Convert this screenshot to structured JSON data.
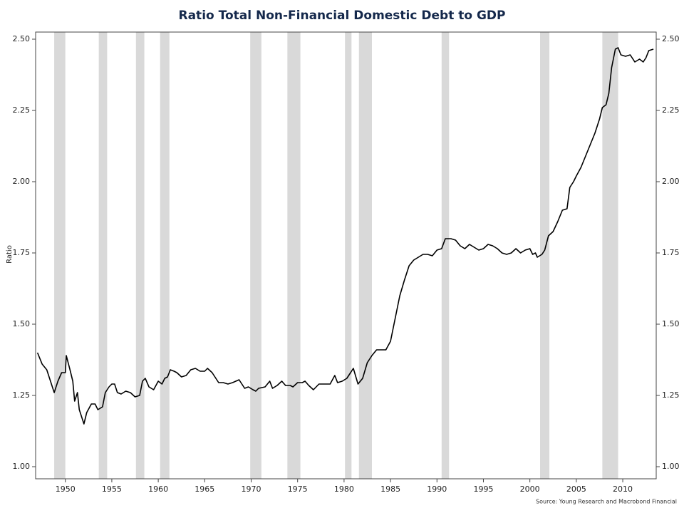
{
  "chart_data": {
    "type": "line",
    "title": "Ratio Total Non-Financial Domestic Debt to GDP",
    "y_label": "Ratio",
    "source": "Source: Young Research and Macrobond Financial",
    "xlim": [
      1946.8,
      2013.6
    ],
    "ylim": [
      0.9575,
      2.525
    ],
    "xticks": [
      1950,
      1955,
      1960,
      1965,
      1970,
      1975,
      1980,
      1985,
      1990,
      1995,
      2000,
      2005,
      2010
    ],
    "yticks": [
      {
        "value": 1.0,
        "label": "1.00"
      },
      1.25,
      {
        "value": 1.5,
        "label": "1.50"
      },
      1.75,
      {
        "value": 2.0,
        "label": "2.00"
      },
      2.25,
      {
        "value": 2.5,
        "label": "2.50"
      }
    ],
    "shading_color": "#d9d9d9",
    "recessions": [
      [
        1948.8,
        1950.0
      ],
      [
        1953.6,
        1954.5
      ],
      [
        1957.6,
        1958.5
      ],
      [
        1960.2,
        1961.2
      ],
      [
        1969.9,
        1971.1
      ],
      [
        1973.9,
        1975.3
      ],
      [
        1980.1,
        1980.8
      ],
      [
        1981.6,
        1983.0
      ],
      [
        1990.5,
        1991.3
      ],
      [
        2001.1,
        2002.1
      ],
      [
        2007.8,
        2009.5
      ]
    ],
    "series": [
      {
        "name": "Ratio",
        "color": "#000000",
        "x": [
          1947.0,
          1947.5,
          1948.0,
          1948.5,
          1948.8,
          1949.2,
          1949.6,
          1950.0,
          1950.1,
          1950.5,
          1950.8,
          1951.0,
          1951.3,
          1951.5,
          1952.0,
          1952.3,
          1952.8,
          1953.2,
          1953.5,
          1954.0,
          1954.3,
          1954.7,
          1955.0,
          1955.3,
          1955.6,
          1956.0,
          1956.5,
          1957.0,
          1957.5,
          1958.0,
          1958.3,
          1958.6,
          1959.0,
          1959.5,
          1960.0,
          1960.4,
          1960.7,
          1961.0,
          1961.3,
          1961.7,
          1962.0,
          1962.5,
          1963.0,
          1963.5,
          1964.0,
          1964.5,
          1965.0,
          1965.3,
          1965.8,
          1966.5,
          1967.0,
          1967.5,
          1968.0,
          1968.7,
          1969.3,
          1969.7,
          1970.2,
          1970.5,
          1970.8,
          1971.5,
          1972.0,
          1972.3,
          1972.8,
          1973.3,
          1973.7,
          1974.2,
          1974.5,
          1975.0,
          1975.5,
          1975.8,
          1976.2,
          1976.7,
          1977.3,
          1978.0,
          1978.5,
          1979.0,
          1979.3,
          1979.8,
          1980.3,
          1980.6,
          1981.0,
          1981.5,
          1982.0,
          1982.5,
          1983.0,
          1983.5,
          1984.0,
          1984.5,
          1985.0,
          1985.5,
          1986.0,
          1986.5,
          1987.0,
          1987.5,
          1988.0,
          1988.5,
          1989.0,
          1989.5,
          1990.0,
          1990.5,
          1990.9,
          1991.5,
          1992.0,
          1992.5,
          1993.0,
          1993.5,
          1994.0,
          1994.5,
          1995.0,
          1995.5,
          1996.0,
          1996.5,
          1997.0,
          1997.5,
          1998.0,
          1998.5,
          1999.0,
          1999.5,
          2000.0,
          2000.3,
          2000.6,
          2000.8,
          2001.3,
          2001.6,
          2002.0,
          2002.5,
          2003.0,
          2003.5,
          2004.0,
          2004.3,
          2004.7,
          2005.0,
          2005.5,
          2006.0,
          2006.5,
          2007.0,
          2007.5,
          2007.8,
          2008.2,
          2008.5,
          2008.8,
          2009.2,
          2009.5,
          2009.8,
          2010.3,
          2010.8,
          2011.0,
          2011.3,
          2011.8,
          2012.2,
          2012.5,
          2012.8,
          2013.3
        ],
        "values": [
          1.4,
          1.36,
          1.34,
          1.29,
          1.26,
          1.3,
          1.33,
          1.33,
          1.39,
          1.34,
          1.3,
          1.23,
          1.26,
          1.2,
          1.15,
          1.19,
          1.22,
          1.22,
          1.2,
          1.21,
          1.26,
          1.28,
          1.29,
          1.29,
          1.26,
          1.255,
          1.265,
          1.26,
          1.245,
          1.25,
          1.3,
          1.31,
          1.28,
          1.27,
          1.3,
          1.29,
          1.31,
          1.315,
          1.34,
          1.335,
          1.33,
          1.315,
          1.32,
          1.34,
          1.345,
          1.335,
          1.335,
          1.345,
          1.33,
          1.295,
          1.295,
          1.29,
          1.295,
          1.305,
          1.275,
          1.28,
          1.27,
          1.265,
          1.275,
          1.28,
          1.3,
          1.275,
          1.285,
          1.3,
          1.285,
          1.285,
          1.28,
          1.295,
          1.295,
          1.3,
          1.285,
          1.27,
          1.29,
          1.29,
          1.29,
          1.32,
          1.295,
          1.3,
          1.31,
          1.325,
          1.345,
          1.29,
          1.31,
          1.365,
          1.39,
          1.41,
          1.41,
          1.41,
          1.44,
          1.52,
          1.6,
          1.655,
          1.705,
          1.725,
          1.735,
          1.745,
          1.745,
          1.74,
          1.76,
          1.765,
          1.8,
          1.8,
          1.795,
          1.775,
          1.765,
          1.78,
          1.77,
          1.76,
          1.765,
          1.78,
          1.775,
          1.765,
          1.75,
          1.745,
          1.75,
          1.765,
          1.75,
          1.76,
          1.765,
          1.745,
          1.75,
          1.735,
          1.745,
          1.76,
          1.81,
          1.825,
          1.86,
          1.9,
          1.905,
          1.98,
          2.0,
          2.02,
          2.05,
          2.09,
          2.13,
          2.17,
          2.22,
          2.26,
          2.27,
          2.31,
          2.4,
          2.465,
          2.47,
          2.445,
          2.44,
          2.445,
          2.435,
          2.42,
          2.43,
          2.42,
          2.435,
          2.46,
          2.465
        ]
      }
    ]
  }
}
